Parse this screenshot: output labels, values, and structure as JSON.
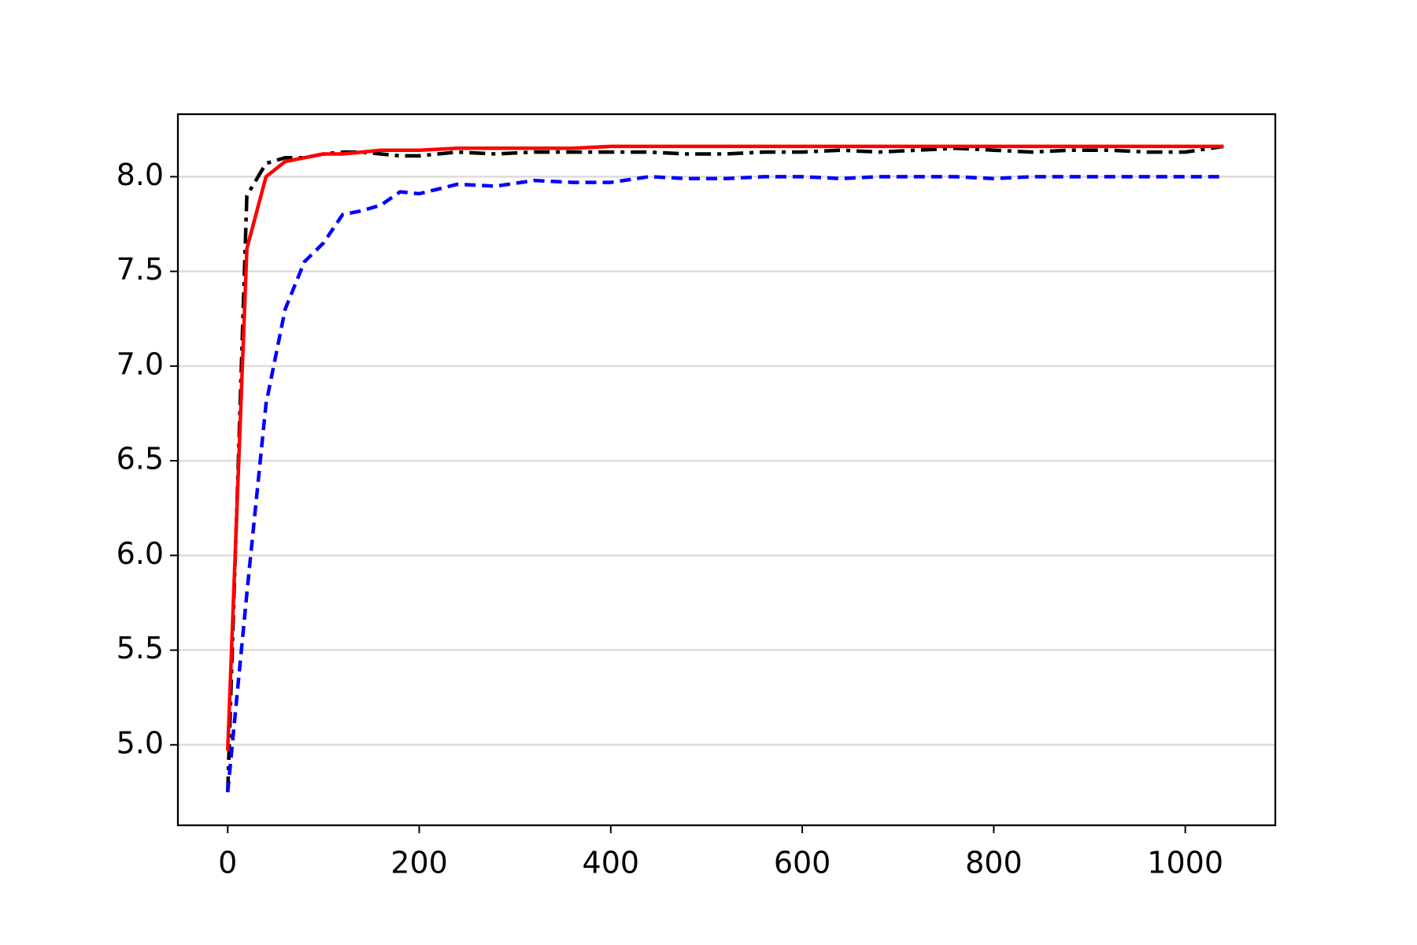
{
  "chart_data": {
    "type": "line",
    "x": [
      0,
      20,
      40,
      60,
      80,
      100,
      120,
      140,
      160,
      180,
      200,
      240,
      280,
      320,
      360,
      400,
      440,
      480,
      520,
      560,
      600,
      640,
      680,
      720,
      760,
      800,
      840,
      880,
      920,
      960,
      1000,
      1040
    ],
    "series": [
      {
        "color": "#000000",
        "linestyle": "dashdot",
        "values": [
          4.75,
          7.9,
          8.07,
          8.1,
          8.1,
          8.12,
          8.13,
          8.13,
          8.12,
          8.11,
          8.11,
          8.13,
          8.12,
          8.13,
          8.13,
          8.13,
          8.13,
          8.12,
          8.12,
          8.13,
          8.13,
          8.14,
          8.13,
          8.14,
          8.15,
          8.14,
          8.13,
          8.14,
          8.14,
          8.13,
          8.13,
          8.16
        ]
      },
      {
        "color": "#0000ff",
        "linestyle": "dashed",
        "values": [
          4.75,
          5.8,
          6.8,
          7.3,
          7.55,
          7.65,
          7.8,
          7.82,
          7.85,
          7.92,
          7.91,
          7.96,
          7.95,
          7.98,
          7.97,
          7.97,
          8.0,
          7.99,
          7.99,
          8.0,
          8.0,
          7.99,
          8.0,
          8.0,
          8.0,
          7.99,
          8.0,
          8.0,
          8.0,
          8.0,
          8.0,
          8.0
        ]
      },
      {
        "color": "#ff0000",
        "linestyle": "solid",
        "values": [
          4.97,
          7.62,
          8.0,
          8.08,
          8.1,
          8.12,
          8.12,
          8.13,
          8.14,
          8.14,
          8.14,
          8.15,
          8.15,
          8.15,
          8.15,
          8.16,
          8.16,
          8.16,
          8.16,
          8.16,
          8.16,
          8.16,
          8.16,
          8.16,
          8.16,
          8.16,
          8.16,
          8.16,
          8.16,
          8.16,
          8.16,
          8.16
        ]
      }
    ],
    "xlim": [
      -52,
      1094
    ],
    "xticks": [
      0,
      200,
      400,
      600,
      800,
      1000
    ],
    "ylim": [
      4.575,
      8.33
    ],
    "yticks": [
      {
        "value": 5,
        "label": "5.0"
      },
      {
        "value": 5.5,
        "label": "5.5"
      },
      {
        "value": 6,
        "label": "6.0"
      },
      {
        "value": 6.5,
        "label": "6.5"
      },
      {
        "value": 7,
        "label": "7.0"
      },
      {
        "value": 7.5,
        "label": "7.5"
      },
      {
        "value": 8,
        "label": "8.0"
      }
    ],
    "grid": "y"
  }
}
